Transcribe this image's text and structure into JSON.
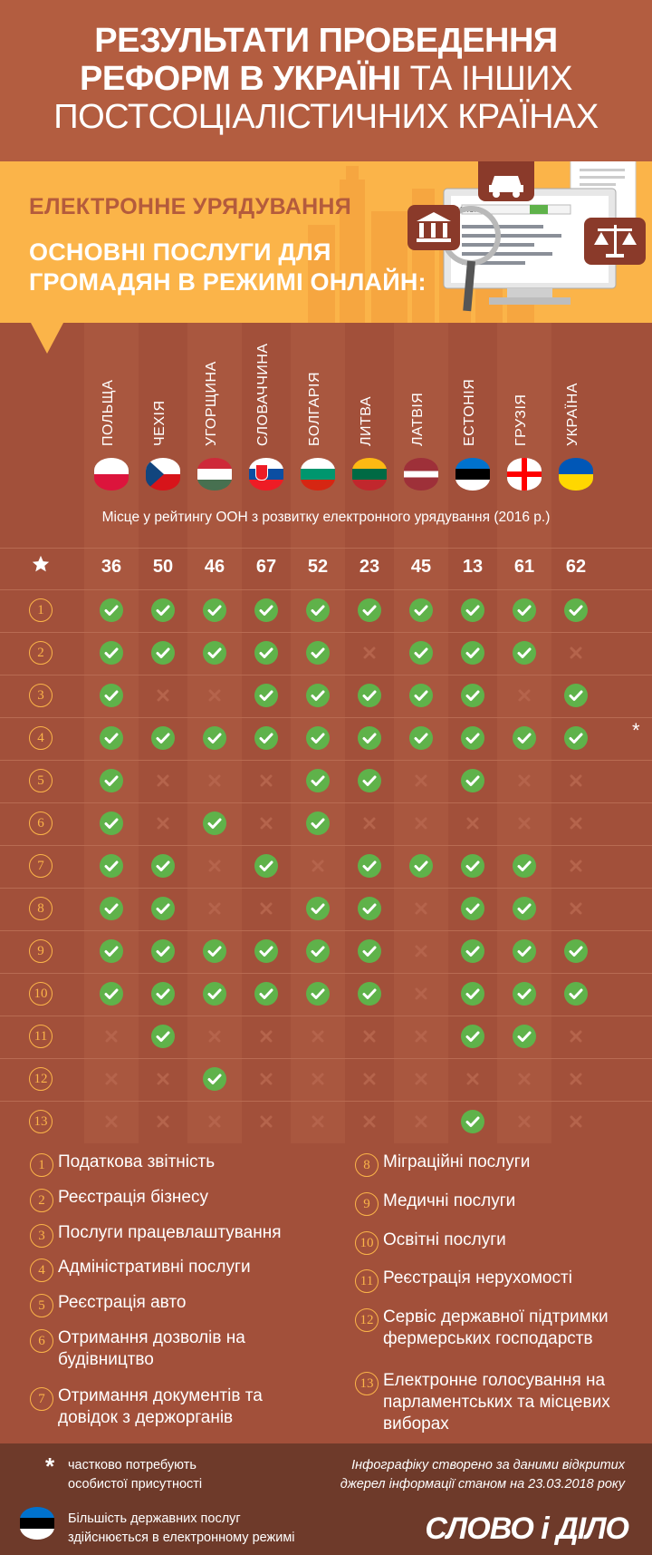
{
  "header": {
    "title_line1": "РЕЗУЛЬТАТИ ПРОВЕДЕННЯ",
    "title_line2_bold": "РЕФОРМ В УКРАЇНІ",
    "title_line2_thin": " ТА ІНШИХ",
    "title_line3": "ПОСТСОЦІАЛІСТИЧНИХ КРАЇНАХ"
  },
  "banner": {
    "subtitle": "ЕЛЕКТРОННЕ УРЯДУВАННЯ",
    "question_line1": "ОСНОВНІ ПОСЛУГИ ДЛЯ",
    "question_line2": "ГРОМАДЯН В РЕЖИМІ ОНЛАЙН:",
    "search_label": "SEARCH"
  },
  "caption": "Місце у рейтингу ООН з розвитку електронного урядування (2016 р.)",
  "countries": [
    {
      "name": "ПОЛЬЩА",
      "rank": "36",
      "flag": [
        "#ffffff",
        "#dc143c"
      ]
    },
    {
      "name": "ЧЕХІЯ",
      "rank": "50",
      "flag": [
        "#ffffff",
        "#d7141a"
      ]
    },
    {
      "name": "УГОРЩИНА",
      "rank": "46",
      "flag": [
        "#ce2939",
        "#ffffff",
        "#477050"
      ]
    },
    {
      "name": "СЛОВАЧЧИНА",
      "rank": "67",
      "flag": [
        "#ffffff",
        "#0b4ea2",
        "#ee1c25"
      ]
    },
    {
      "name": "БОЛГАРІЯ",
      "rank": "52",
      "flag": [
        "#ffffff",
        "#00966e",
        "#d62612"
      ]
    },
    {
      "name": "ЛИТВА",
      "rank": "23",
      "flag": [
        "#fdb913",
        "#006a44",
        "#c1272d"
      ]
    },
    {
      "name": "ЛАТВІЯ",
      "rank": "45",
      "flag": [
        "#9e3039",
        "#ffffff",
        "#9e3039"
      ]
    },
    {
      "name": "ЕСТОНІЯ",
      "rank": "13",
      "flag": [
        "#0072ce",
        "#000000",
        "#ffffff"
      ]
    },
    {
      "name": "ГРУЗІЯ",
      "rank": "61",
      "flag": [
        "#ffffff",
        "#ff0000"
      ]
    },
    {
      "name": "УКРАЇНА",
      "rank": "62",
      "flag": [
        "#0057b7",
        "#ffd700"
      ]
    }
  ],
  "rows": [
    {
      "num": "1",
      "marks": [
        1,
        1,
        1,
        1,
        1,
        1,
        1,
        1,
        1,
        1
      ]
    },
    {
      "num": "2",
      "marks": [
        1,
        1,
        1,
        1,
        1,
        0,
        1,
        1,
        1,
        0
      ]
    },
    {
      "num": "3",
      "marks": [
        1,
        0,
        0,
        1,
        1,
        1,
        1,
        1,
        0,
        1
      ]
    },
    {
      "num": "4",
      "marks": [
        1,
        1,
        1,
        1,
        1,
        1,
        1,
        1,
        1,
        1
      ]
    },
    {
      "num": "5",
      "marks": [
        1,
        0,
        0,
        0,
        1,
        1,
        0,
        1,
        0,
        0
      ]
    },
    {
      "num": "6",
      "marks": [
        1,
        0,
        1,
        0,
        1,
        0,
        0,
        0,
        0,
        0
      ]
    },
    {
      "num": "7",
      "marks": [
        1,
        1,
        0,
        1,
        0,
        1,
        1,
        1,
        1,
        0
      ]
    },
    {
      "num": "8",
      "marks": [
        1,
        1,
        0,
        0,
        1,
        1,
        0,
        1,
        1,
        0
      ]
    },
    {
      "num": "9",
      "marks": [
        1,
        1,
        1,
        1,
        1,
        1,
        0,
        1,
        1,
        1
      ]
    },
    {
      "num": "10",
      "marks": [
        1,
        1,
        1,
        1,
        1,
        1,
        0,
        1,
        1,
        1
      ]
    },
    {
      "num": "11",
      "marks": [
        0,
        1,
        0,
        0,
        0,
        0,
        0,
        1,
        1,
        0
      ]
    },
    {
      "num": "12",
      "marks": [
        0,
        0,
        1,
        0,
        0,
        0,
        0,
        0,
        0,
        0
      ]
    },
    {
      "num": "13",
      "marks": [
        0,
        0,
        0,
        0,
        0,
        0,
        0,
        1,
        0,
        0
      ]
    }
  ],
  "ukraine_row4_note": "*",
  "legend": {
    "left": [
      {
        "num": "1",
        "text": "Податкова звітність"
      },
      {
        "num": "2",
        "text": "Реєстрація бізнесу"
      },
      {
        "num": "3",
        "text": "Послуги працевлаштування"
      },
      {
        "num": "4",
        "text": "Адміністративні послуги"
      },
      {
        "num": "5",
        "text": "Реєстрація авто"
      },
      {
        "num": "6",
        "text": "Отримання дозволів на будівництво"
      },
      {
        "num": "7",
        "text": "Отримання документів та довідок з держорганів"
      }
    ],
    "right": [
      {
        "num": "8",
        "text": "Міграційні послуги"
      },
      {
        "num": "9",
        "text": "Медичні послуги"
      },
      {
        "num": "10",
        "text": "Освітні послуги"
      },
      {
        "num": "11",
        "text": "Реєстрація нерухомості"
      },
      {
        "num": "12",
        "text": "Сервіс державної підтримки фермерських господарств"
      },
      {
        "num": "13",
        "text": "Електронне голосування на парламентських та місцевих виборах"
      }
    ]
  },
  "footer": {
    "star": "*",
    "note_line1": "частково потребують",
    "note_line2": "особистої присутності",
    "source_line1": "Інфографіку створено за даними відкритих",
    "source_line2": "джерел інформації станом на 23.03.2018 року",
    "estonia_line1": "Більшість державних послуг",
    "estonia_line2": "здійснюється в електронному режимі",
    "brand": "СЛОВО і ДІЛО"
  },
  "colors": {
    "background": "#a2503a",
    "header": "#b35d40",
    "banner": "#fbb449",
    "check": "#5fb24a",
    "cross": "#b5644c",
    "footer": "#6e3a2a"
  },
  "icons": [
    "star-icon",
    "car-icon",
    "bank-icon",
    "scales-icon",
    "magnifier-icon",
    "monitor-icon",
    "check-icon",
    "cross-icon"
  ]
}
